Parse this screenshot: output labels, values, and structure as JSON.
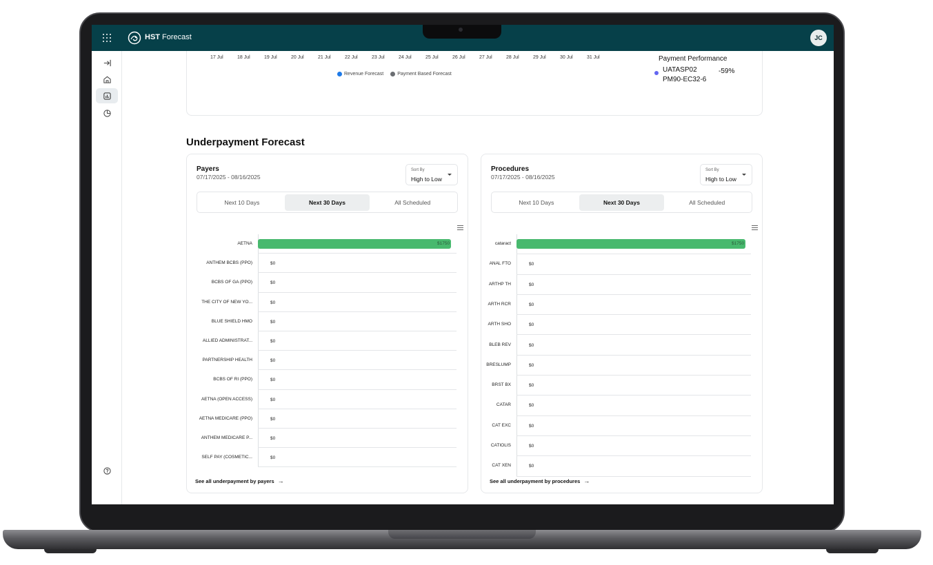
{
  "app": {
    "brand_bold": "HST",
    "brand_rest": " Forecast",
    "avatar_initials": "JC"
  },
  "sidebar": {
    "items": [
      "collapse-icon",
      "home-icon",
      "chart-icon",
      "pie-icon",
      "help-icon"
    ]
  },
  "top_chart": {
    "x_ticks": [
      "17 Jul",
      "18 Jul",
      "19 Jul",
      "20 Jul",
      "21 Jul",
      "22 Jul",
      "23 Jul",
      "24 Jul",
      "25 Jul",
      "26 Jul",
      "27 Jul",
      "28 Jul",
      "29 Jul",
      "30 Jul",
      "31 Jul"
    ],
    "legend": [
      {
        "label": "Revenue Forecast",
        "color": "#1e7ae8"
      },
      {
        "label": "Payment Based Forecast",
        "color": "#6b6e72"
      }
    ]
  },
  "payment_performance": {
    "title": "Payment Performance",
    "code_line1": "UATASP02",
    "code_line2": "PM90-EC32-6",
    "value": "-59%",
    "dot_color": "#6366f1"
  },
  "section_title": "Underpayment Forecast",
  "payers_panel": {
    "title": "Payers",
    "date_range": "07/17/2025 - 08/16/2025",
    "sort_label": "Sort By",
    "sort_value": "High to Low",
    "tabs": [
      "Next 10 Days",
      "Next 30 Days",
      "All Scheduled"
    ],
    "active_tab": "Next 30 Days",
    "see_all": "See all underpayment by payers"
  },
  "procedures_panel": {
    "title": "Procedures",
    "date_range": "07/17/2025 - 08/16/2025",
    "sort_label": "Sort By",
    "sort_value": "High to Low",
    "tabs": [
      "Next 10 Days",
      "Next 30 Days",
      "All Scheduled"
    ],
    "active_tab": "Next 30 Days",
    "see_all": "See all underpayment by procedures"
  },
  "chart_data": [
    {
      "type": "bar",
      "orientation": "horizontal",
      "categories": [
        "AETNA",
        "ANTHEM BCBS (PPO)",
        "BCBS OF GA (PPO)",
        "THE CITY OF NEW YO...",
        "BLUE SHIELD HMO",
        "ALLIED ADMINISTRAT...",
        "PARTNERSHIP HEALTH",
        "BCBS OF RI (PPO)",
        "AETNA (OPEN ACCESS)",
        "AETNA MEDICARE (PPO)",
        "ANTHEM MEDICARE P...",
        "SELF PAY (COSMETIC..."
      ],
      "values": [
        1750,
        0,
        0,
        0,
        0,
        0,
        0,
        0,
        0,
        0,
        0,
        0
      ],
      "labels": [
        "$1750",
        "$0",
        "$0",
        "$0",
        "$0",
        "$0",
        "$0",
        "$0",
        "$0",
        "$0",
        "$0",
        "$0"
      ],
      "bar_color": "#48b96e",
      "xlim": [
        0,
        1750
      ]
    },
    {
      "type": "bar",
      "orientation": "horizontal",
      "categories": [
        "cataract",
        "ANAL FTO",
        "ARTHP TH",
        "ARTH RCR",
        "ARTH SHO",
        "BLEB REV",
        "BRESLUMP",
        "BRST BX",
        "CATAR",
        "CAT EXC",
        "CATIOLIS",
        "CAT XEN"
      ],
      "values": [
        1750,
        0,
        0,
        0,
        0,
        0,
        0,
        0,
        0,
        0,
        0,
        0
      ],
      "labels": [
        "$1750",
        "$0",
        "$0",
        "$0",
        "$0",
        "$0",
        "$0",
        "$0",
        "$0",
        "$0",
        "$0",
        "$0"
      ],
      "bar_color": "#48b96e",
      "xlim": [
        0,
        1750
      ]
    }
  ]
}
